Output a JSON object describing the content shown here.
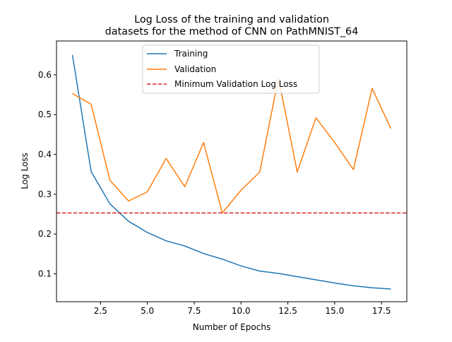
{
  "chart_data": {
    "type": "line",
    "title_line1": "Log Loss of the training and validation",
    "title_line2": "datasets for the method of CNN on PathMNIST_64",
    "xlabel": "Number of Epochs",
    "ylabel": "Log Loss",
    "xlim": [
      0.15,
      18.85
    ],
    "ylim": [
      0.03,
      0.685
    ],
    "xticks": [
      2.5,
      5.0,
      7.5,
      10.0,
      12.5,
      15.0,
      17.5
    ],
    "xtick_labels": [
      "2.5",
      "5.0",
      "7.5",
      "10.0",
      "12.5",
      "15.0",
      "17.5"
    ],
    "yticks": [
      0.1,
      0.2,
      0.3,
      0.4,
      0.5,
      0.6
    ],
    "ytick_labels": [
      "0.1",
      "0.2",
      "0.3",
      "0.4",
      "0.5",
      "0.6"
    ],
    "grid": false,
    "legend_position": "upper-center",
    "x": [
      1,
      2,
      3,
      4,
      5,
      6,
      7,
      8,
      9,
      10,
      11,
      12,
      13,
      14,
      15,
      16,
      17,
      18
    ],
    "series": [
      {
        "name": "Training",
        "color": "#1f77b4",
        "style": "solid",
        "values": [
          0.65,
          0.357,
          0.276,
          0.232,
          0.204,
          0.183,
          0.17,
          0.151,
          0.137,
          0.12,
          0.107,
          0.101,
          0.093,
          0.085,
          0.077,
          0.07,
          0.065,
          0.062
        ]
      },
      {
        "name": "Validation",
        "color": "#ff7f0e",
        "style": "solid",
        "values": [
          0.553,
          0.526,
          0.335,
          0.283,
          0.306,
          0.39,
          0.319,
          0.43,
          0.253,
          0.31,
          0.356,
          0.592,
          0.356,
          0.492,
          0.43,
          0.362,
          0.566,
          0.465
        ]
      }
    ],
    "reference_line": {
      "name": "Minimum Validation Log Loss",
      "color": "#d62728",
      "style": "dashed",
      "value": 0.253
    }
  }
}
